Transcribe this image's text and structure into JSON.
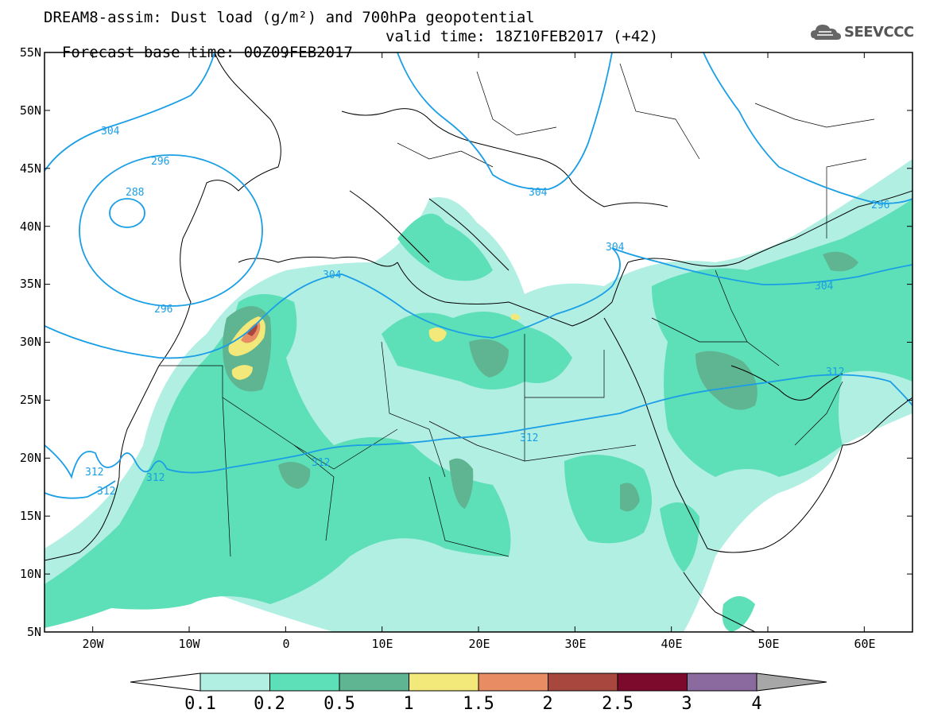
{
  "header": {
    "title_line1": "DREAM8-assim: Dust load (g/m²) and 700hPa geopotential",
    "base_time": "Forecast base time: 00Z09FEB2017",
    "valid_time": "valid time: 18Z10FEB2017 (+42)"
  },
  "logo": {
    "text": "SEEVCCC"
  },
  "axes": {
    "lon_labels": [
      "20W",
      "10W",
      "0",
      "10E",
      "20E",
      "30E",
      "40E",
      "50E",
      "60E"
    ],
    "lat_labels": [
      "55N",
      "50N",
      "45N",
      "40N",
      "35N",
      "30N",
      "25N",
      "20N",
      "15N",
      "10N",
      "5N"
    ],
    "lon_range": [
      -25,
      65
    ],
    "lat_range": [
      5,
      55
    ]
  },
  "contours": {
    "color": "#1a9ee6",
    "labels": [
      "304",
      "296",
      "288",
      "296",
      "304",
      "304",
      "304",
      "304",
      "296",
      "312",
      "312",
      "312",
      "312",
      "312",
      "312"
    ]
  },
  "colorbar": {
    "ticks": [
      "0.1",
      "0.2",
      "0.5",
      "1",
      "1.5",
      "2",
      "2.5",
      "3",
      "4"
    ],
    "colors": [
      "#b2efe3",
      "#5ddfb7",
      "#5fb591",
      "#f3e87a",
      "#e88d63",
      "#a8473d",
      "#7b0a2d",
      "#8b6aa0"
    ],
    "low_color": "#ffffff",
    "high_color": "#a7a7a7"
  }
}
